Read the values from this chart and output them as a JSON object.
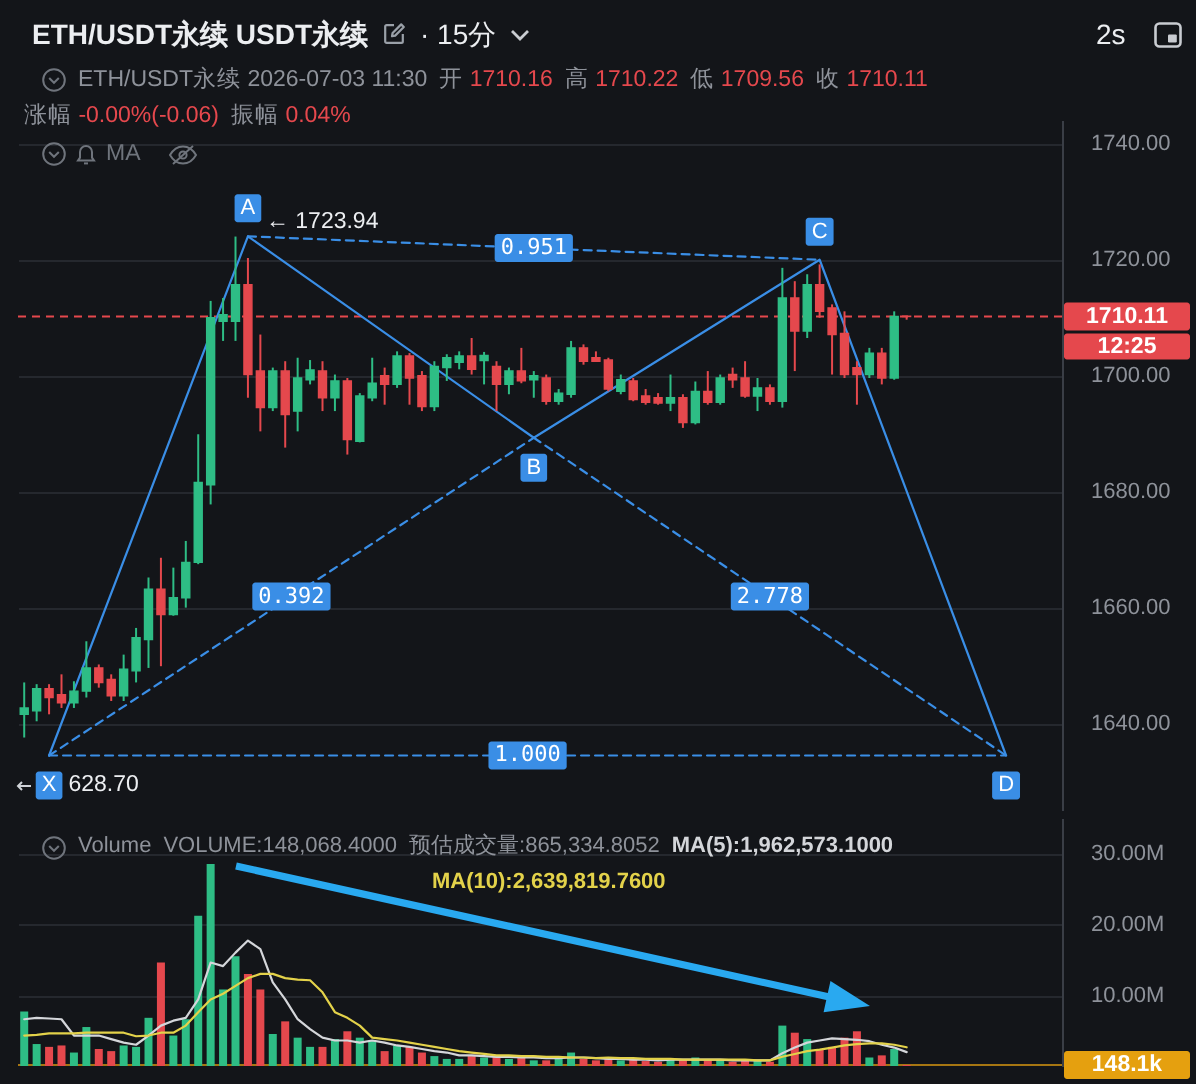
{
  "chart_data": [
    {
      "type": "candlestick",
      "title": "ETH/USDT永续 USDT永续",
      "subtitle": "ETH/USDT永续 2026-07-03 11:30",
      "categories": [
        null,
        null,
        null,
        null,
        null,
        null,
        null,
        null,
        null,
        null,
        null,
        null,
        null,
        null,
        null,
        null,
        null,
        null,
        null,
        null,
        null,
        null,
        null,
        null,
        null,
        null,
        null,
        null,
        null,
        null,
        null,
        null,
        null,
        null,
        null,
        null,
        null,
        null,
        null,
        null,
        null,
        null,
        null,
        null,
        null,
        null,
        null,
        null,
        null,
        null,
        null,
        null,
        null,
        null,
        null,
        null,
        null,
        null,
        null,
        null,
        null,
        null,
        null,
        null,
        null,
        null,
        null,
        null,
        null,
        null,
        null,
        null,
        null,
        null,
        null,
        null,
        null,
        null,
        null,
        null,
        null,
        null,
        null,
        null
      ],
      "ohlc": [
        [
          1641.5,
          1647.0,
          1637.5,
          1642.6
        ],
        [
          1642.1,
          1646.7,
          1640.3,
          1645.9
        ],
        [
          1645.9,
          1646.7,
          1641.5,
          1644.4
        ],
        [
          1644.9,
          1648.4,
          1642.6,
          1643.5
        ],
        [
          1643.5,
          1647.2,
          1642.6,
          1645.5
        ],
        [
          1645.5,
          1654.1,
          1644.4,
          1649.5
        ],
        [
          1649.5,
          1650.1,
          1646.1,
          1647.0
        ],
        [
          1647.5,
          1648.4,
          1643.8,
          1644.7
        ],
        [
          1644.7,
          1651.8,
          1643.8,
          1649.3
        ],
        [
          1649.0,
          1656.4,
          1647.0,
          1654.7
        ],
        [
          1654.4,
          1665.1,
          1649.5,
          1663.1
        ],
        [
          1663.1,
          1668.5,
          1649.8,
          1658.7
        ],
        [
          1658.7,
          1666.8,
          1658.5,
          1661.6
        ],
        [
          1661.6,
          1671.4,
          1659.9,
          1667.7
        ],
        [
          1667.7,
          1689.8,
          1667.4,
          1681.5
        ],
        [
          1681.1,
          1712.8,
          1677.7,
          1709.9
        ],
        [
          1709.3,
          1713.3,
          1705.9,
          1710.4
        ],
        [
          1709.3,
          1723.9,
          1705.9,
          1715.6
        ],
        [
          1715.6,
          1720.2,
          1696.1,
          1700.1
        ],
        [
          1700.7,
          1707.0,
          1690.3,
          1694.4
        ],
        [
          1694.4,
          1701.3,
          1693.8,
          1700.7
        ],
        [
          1700.7,
          1702.4,
          1687.5,
          1693.2
        ],
        [
          1693.8,
          1703.0,
          1690.3,
          1699.5
        ],
        [
          1699.2,
          1702.6,
          1698.4,
          1700.9
        ],
        [
          1700.7,
          1702.4,
          1693.8,
          1696.1
        ],
        [
          1696.1,
          1700.1,
          1693.8,
          1699.0
        ],
        [
          1699.0,
          1699.5,
          1686.3,
          1688.9
        ],
        [
          1688.6,
          1696.9,
          1688.4,
          1696.4
        ],
        [
          1696.1,
          1703.0,
          1695.5,
          1698.6
        ],
        [
          1699.9,
          1701.3,
          1694.9,
          1698.4
        ],
        [
          1698.4,
          1704.1,
          1697.8,
          1703.3
        ],
        [
          1703.3,
          1703.8,
          1694.9,
          1699.5
        ],
        [
          1699.9,
          1700.7,
          1693.8,
          1694.6
        ],
        [
          1694.6,
          1702.4,
          1693.8,
          1701.5
        ],
        [
          1701.3,
          1703.6,
          1699.0,
          1703.0
        ],
        [
          1702.2,
          1704.1,
          1701.0,
          1703.3
        ],
        [
          1703.3,
          1706.4,
          1700.1,
          1701.0
        ],
        [
          1702.5,
          1704.0,
          1698.4,
          1703.4
        ],
        [
          1701.5,
          1702.4,
          1693.8,
          1698.4
        ],
        [
          1698.4,
          1701.3,
          1696.7,
          1700.7
        ],
        [
          1700.7,
          1704.7,
          1698.6,
          1699.0
        ],
        [
          1699.2,
          1700.7,
          1696.1,
          1699.9
        ],
        [
          1699.5,
          1700.1,
          1694.9,
          1695.5
        ],
        [
          1695.5,
          1697.6,
          1694.9,
          1696.9
        ],
        [
          1696.7,
          1705.9,
          1696.1,
          1704.7
        ],
        [
          1704.7,
          1705.3,
          1701.8,
          1702.4
        ],
        [
          1703.0,
          1704.1,
          1702.4,
          1702.4
        ],
        [
          1702.6,
          1703.0,
          1697.2,
          1697.6
        ],
        [
          1697.2,
          1700.1,
          1696.7,
          1699.2
        ],
        [
          1699.0,
          1699.5,
          1695.5,
          1695.8
        ],
        [
          1696.4,
          1697.6,
          1694.9,
          1695.3
        ],
        [
          1696.1,
          1696.9,
          1694.9,
          1695.2
        ],
        [
          1695.2,
          1700.1,
          1693.8,
          1696.1
        ],
        [
          1696.1,
          1696.7,
          1690.9,
          1691.8
        ],
        [
          1691.8,
          1698.9,
          1691.5,
          1697.2
        ],
        [
          1697.2,
          1700.7,
          1694.9,
          1695.3
        ],
        [
          1695.3,
          1700.1,
          1694.9,
          1699.5
        ],
        [
          1700.1,
          1701.3,
          1697.8,
          1699.2
        ],
        [
          1699.5,
          1702.4,
          1696.1,
          1696.4
        ],
        [
          1696.4,
          1699.5,
          1693.8,
          1697.8
        ],
        [
          1697.8,
          1698.4,
          1694.9,
          1695.5
        ],
        [
          1695.5,
          1718.5,
          1694.4,
          1713.3
        ],
        [
          1713.3,
          1716.2,
          1700.7,
          1707.6
        ],
        [
          1707.6,
          1717.4,
          1706.4,
          1715.6
        ],
        [
          1715.6,
          1719.1,
          1709.9,
          1711.0
        ],
        [
          1711.6,
          1712.2,
          1700.1,
          1707.0
        ],
        [
          1707.2,
          1711.0,
          1699.5,
          1700.1
        ],
        [
          1701.3,
          1702.4,
          1694.9,
          1700.1
        ],
        [
          1700.1,
          1704.7,
          1699.5,
          1703.8
        ],
        [
          1703.8,
          1704.7,
          1698.4,
          1699.5
        ],
        [
          1699.5,
          1711.0,
          1699.2,
          1710.1
        ],
        [
          1710.16,
          1710.22,
          1709.56,
          1710.11
        ],
        null,
        null,
        null,
        null,
        null,
        null,
        null,
        null,
        null,
        null,
        null,
        null
      ],
      "colors": [
        "#2ebd85",
        "#2ebd85",
        "#e5484d",
        "#e5484d",
        "#2ebd85",
        "#2ebd85",
        "#e5484d",
        "#e5484d",
        "#2ebd85",
        "#2ebd85",
        "#2ebd85",
        "#e5484d",
        "#2ebd85",
        "#2ebd85",
        "#2ebd85",
        "#2ebd85",
        "#2ebd85",
        "#2ebd85",
        "#e5484d",
        "#e5484d",
        "#2ebd85",
        "#e5484d",
        "#2ebd85",
        "#2ebd85",
        "#e5484d",
        "#2ebd85",
        "#e5484d",
        "#2ebd85",
        "#2ebd85",
        "#e5484d",
        "#2ebd85",
        "#e5484d",
        "#e5484d",
        "#2ebd85",
        "#2ebd85",
        "#2ebd85",
        "#e5484d",
        "#2ebd85",
        "#e5484d",
        "#2ebd85",
        "#e5484d",
        "#2ebd85",
        "#e5484d",
        "#2ebd85",
        "#2ebd85",
        "#e5484d",
        "#e5484d",
        "#e5484d",
        "#2ebd85",
        "#e5484d",
        "#e5484d",
        "#e5484d",
        "#2ebd85",
        "#e5484d",
        "#2ebd85",
        "#e5484d",
        "#2ebd85",
        "#e5484d",
        "#e5484d",
        "#2ebd85",
        "#e5484d",
        "#2ebd85",
        "#e5484d",
        "#2ebd85",
        "#e5484d",
        "#e5484d",
        "#e5484d",
        "#e5484d",
        "#2ebd85",
        "#e5484d",
        "#2ebd85",
        "#e5484d",
        null,
        null,
        null,
        null,
        null,
        null,
        null,
        null,
        null,
        null,
        null,
        null
      ],
      "series": [
        {
          "type": "line",
          "color": "#3a8ee6",
          "values": [
            null,
            null,
            1634.4,
            null,
            null,
            null,
            null,
            null,
            null,
            null,
            null,
            null,
            null,
            null,
            null,
            null,
            null,
            null,
            1723.94,
            null,
            null,
            null,
            null,
            null,
            null,
            null,
            null,
            null,
            null,
            null,
            null,
            null,
            null,
            null,
            null,
            null,
            null,
            null,
            null,
            null,
            null,
            1689.2,
            null,
            null,
            null,
            null,
            null,
            null,
            null,
            null,
            null,
            null,
            null,
            null,
            null,
            null,
            null,
            null,
            null,
            null,
            null,
            null,
            null,
            null,
            1719.9,
            null,
            null,
            null,
            null,
            null,
            null,
            null,
            null,
            null,
            null,
            null,
            null,
            null,
            null,
            1634.4,
            null,
            null,
            null,
            null
          ],
          "value_labels": [
            null,
            null,
            "X",
            null,
            null,
            null,
            null,
            null,
            null,
            null,
            null,
            null,
            null,
            null,
            null,
            null,
            null,
            null,
            "A",
            null,
            null,
            null,
            null,
            null,
            null,
            null,
            null,
            null,
            null,
            null,
            null,
            null,
            null,
            null,
            null,
            null,
            null,
            null,
            null,
            null,
            null,
            "B",
            null,
            null,
            null,
            null,
            null,
            null,
            null,
            null,
            null,
            null,
            null,
            null,
            null,
            null,
            null,
            null,
            null,
            null,
            null,
            null,
            null,
            null,
            "C",
            null,
            null,
            null,
            null,
            null,
            null,
            null,
            null,
            null,
            null,
            null,
            null,
            null,
            null,
            "D",
            null,
            null,
            null,
            null
          ]
        },
        {
          "name": "0.392",
          "type": "line",
          "line_style": "dashed",
          "color": "#3a8ee6",
          "values": [
            null,
            null,
            1634.4,
            null,
            null,
            null,
            null,
            null,
            null,
            null,
            null,
            null,
            null,
            null,
            null,
            null,
            null,
            null,
            null,
            null,
            null,
            null,
            null,
            null,
            null,
            null,
            null,
            null,
            null,
            null,
            null,
            null,
            null,
            null,
            null,
            null,
            null,
            null,
            null,
            null,
            null,
            1689.2,
            null,
            null,
            null,
            null,
            null,
            null,
            null,
            null,
            null,
            null,
            null,
            null,
            null,
            null,
            null,
            null,
            null,
            null,
            null,
            null,
            null,
            null,
            null,
            null,
            null,
            null,
            null,
            null,
            null,
            null,
            null,
            null,
            null,
            null,
            null,
            null,
            null,
            null,
            null,
            null,
            null,
            null
          ]
        },
        {
          "name": "0.951",
          "type": "line",
          "line_style": "dashed",
          "color": "#3a8ee6",
          "values": [
            null,
            null,
            null,
            null,
            null,
            null,
            null,
            null,
            null,
            null,
            null,
            null,
            null,
            null,
            null,
            null,
            null,
            null,
            1723.94,
            null,
            null,
            null,
            null,
            null,
            null,
            null,
            null,
            null,
            null,
            null,
            null,
            null,
            null,
            null,
            null,
            null,
            null,
            null,
            null,
            null,
            null,
            null,
            null,
            null,
            null,
            null,
            null,
            null,
            null,
            null,
            null,
            null,
            null,
            null,
            null,
            null,
            null,
            null,
            null,
            null,
            null,
            null,
            null,
            null,
            1719.9,
            null,
            null,
            null,
            null,
            null,
            null,
            null,
            null,
            null,
            null,
            null,
            null,
            null,
            null,
            null,
            null,
            null,
            null,
            null
          ]
        },
        {
          "name": "2.778",
          "type": "line",
          "line_style": "dashed",
          "color": "#3a8ee6",
          "values": [
            null,
            null,
            null,
            null,
            null,
            null,
            null,
            null,
            null,
            null,
            null,
            null,
            null,
            null,
            null,
            null,
            null,
            null,
            null,
            null,
            null,
            null,
            null,
            null,
            null,
            null,
            null,
            null,
            null,
            null,
            null,
            null,
            null,
            null,
            null,
            null,
            null,
            null,
            null,
            null,
            null,
            1689.2,
            null,
            null,
            null,
            null,
            null,
            null,
            null,
            null,
            null,
            null,
            null,
            null,
            null,
            null,
            null,
            null,
            null,
            null,
            null,
            null,
            null,
            null,
            null,
            null,
            null,
            null,
            null,
            null,
            null,
            null,
            null,
            null,
            null,
            null,
            null,
            null,
            null,
            1634.4,
            null,
            null,
            null,
            null
          ]
        },
        {
          "name": "1.000",
          "type": "line",
          "line_style": "dashed",
          "color": "#3a8ee6",
          "values": [
            null,
            null,
            1634.4,
            null,
            null,
            null,
            null,
            null,
            null,
            null,
            null,
            null,
            null,
            null,
            null,
            null,
            null,
            null,
            null,
            null,
            null,
            null,
            null,
            null,
            null,
            null,
            null,
            null,
            null,
            null,
            null,
            null,
            null,
            null,
            null,
            null,
            null,
            null,
            null,
            null,
            null,
            null,
            null,
            null,
            null,
            null,
            null,
            null,
            null,
            null,
            null,
            null,
            null,
            null,
            null,
            null,
            null,
            null,
            null,
            null,
            null,
            null,
            null,
            null,
            null,
            null,
            null,
            null,
            null,
            null,
            null,
            null,
            null,
            null,
            null,
            null,
            null,
            null,
            null,
            1634.4,
            null,
            null,
            null,
            null
          ]
        }
      ],
      "ylim": [
        1625,
        1744
      ],
      "yticks": [
        {
          "value": 1640,
          "label": "1640.00"
        },
        {
          "value": 1660,
          "label": "1660.00"
        },
        {
          "value": 1680,
          "label": "1680.00"
        },
        {
          "value": 1700,
          "label": "1700.00"
        },
        {
          "value": 1720,
          "label": "1720.00"
        },
        {
          "value": 1740,
          "label": "1740.00"
        }
      ],
      "tick_labels": "y",
      "grid": "y",
      "ref_lines": [
        {
          "axis": "y",
          "value": 1710.11,
          "label": "1710.11",
          "color": "#e5484d",
          "line_style": "dashed"
        }
      ],
      "annotations": [
        "· 15分",
        "2s",
        "开 1710.16",
        "高 1710.22",
        "低 1709.56",
        "收 1710.11",
        "涨幅 -0.00%(-0.06)",
        "振幅 0.04%",
        "MA",
        "12:25",
        "← 1723.94",
        "628.70"
      ]
    },
    {
      "type": "bar",
      "title": "Volume",
      "categories": [
        null,
        null,
        null,
        null,
        null,
        null,
        null,
        null,
        null,
        null,
        null,
        null,
        null,
        null,
        null,
        null,
        null,
        null,
        null,
        null,
        null,
        null,
        null,
        null,
        null,
        null,
        null,
        null,
        null,
        null,
        null,
        null,
        null,
        null,
        null,
        null,
        null,
        null,
        null,
        null,
        null,
        null,
        null,
        null,
        null,
        null,
        null,
        null,
        null,
        null,
        null,
        null,
        null,
        null,
        null,
        null,
        null,
        null,
        null,
        null,
        null,
        null,
        null,
        null,
        null,
        null,
        null,
        null,
        null,
        null,
        null,
        null,
        null,
        null,
        null,
        null,
        null,
        null,
        null,
        null,
        null,
        null,
        null,
        null
      ],
      "series": [
        {
          "type": "bar",
          "values": [
            7700000,
            3100000,
            2700000,
            2900000,
            1900000,
            5500000,
            2400000,
            2100000,
            2900000,
            2700000,
            6800000,
            14600000,
            4300000,
            6600000,
            21200000,
            28500000,
            10800000,
            15500000,
            13000000,
            10800000,
            4500000,
            6300000,
            4000000,
            2700000,
            2700000,
            3800000,
            4900000,
            4000000,
            3600000,
            2100000,
            2900000,
            2700000,
            1900000,
            1400000,
            1000000,
            1000000,
            1400000,
            1200000,
            1400000,
            1000000,
            1400000,
            800000,
            800000,
            1000000,
            1900000,
            1000000,
            800000,
            1000000,
            800000,
            900000,
            700000,
            600000,
            1000000,
            900000,
            1200000,
            800000,
            900000,
            600000,
            800000,
            700000,
            600000,
            5700000,
            4700000,
            3800000,
            2400000,
            2700000,
            4000000,
            4900000,
            1200000,
            1500000,
            2400000,
            148068.4,
            null,
            null,
            null,
            null,
            null,
            null,
            null,
            null,
            null,
            null,
            null,
            null
          ],
          "colors": [
            "#2ebd85",
            "#2ebd85",
            "#e5484d",
            "#e5484d",
            "#2ebd85",
            "#2ebd85",
            "#e5484d",
            "#e5484d",
            "#2ebd85",
            "#2ebd85",
            "#2ebd85",
            "#e5484d",
            "#2ebd85",
            "#2ebd85",
            "#2ebd85",
            "#2ebd85",
            "#2ebd85",
            "#2ebd85",
            "#e5484d",
            "#e5484d",
            "#2ebd85",
            "#e5484d",
            "#2ebd85",
            "#2ebd85",
            "#e5484d",
            "#2ebd85",
            "#e5484d",
            "#2ebd85",
            "#2ebd85",
            "#e5484d",
            "#2ebd85",
            "#e5484d",
            "#e5484d",
            "#2ebd85",
            "#2ebd85",
            "#2ebd85",
            "#e5484d",
            "#2ebd85",
            "#e5484d",
            "#2ebd85",
            "#e5484d",
            "#2ebd85",
            "#e5484d",
            "#2ebd85",
            "#2ebd85",
            "#e5484d",
            "#e5484d",
            "#e5484d",
            "#2ebd85",
            "#e5484d",
            "#e5484d",
            "#e5484d",
            "#2ebd85",
            "#e5484d",
            "#2ebd85",
            "#e5484d",
            "#2ebd85",
            "#e5484d",
            "#e5484d",
            "#2ebd85",
            "#e5484d",
            "#2ebd85",
            "#e5484d",
            "#2ebd85",
            "#e5484d",
            "#e5484d",
            "#e5484d",
            "#e5484d",
            "#2ebd85",
            "#e5484d",
            "#2ebd85",
            "#e5484d",
            null,
            null,
            null,
            null,
            null,
            null,
            null,
            null,
            null,
            null,
            null,
            null
          ]
        },
        {
          "name": "MA(5):1,962,573.1000",
          "type": "line",
          "color": "#d4d6da",
          "values": [
            6600000,
            6800000,
            6700000,
            6600000,
            4300000,
            4300000,
            4300000,
            3800000,
            3300000,
            3000000,
            4300000,
            5700000,
            6400000,
            6800000,
            9400000,
            14600000,
            14100000,
            16000000,
            17700000,
            16500000,
            11800000,
            9400000,
            6600000,
            5200000,
            4000000,
            3600000,
            3600000,
            3300000,
            3600000,
            3300000,
            2900000,
            2700000,
            2400000,
            2100000,
            1900000,
            1500000,
            1500000,
            1400000,
            1300000,
            1300000,
            1200000,
            1200000,
            1100000,
            1100000,
            1200000,
            1200000,
            1100000,
            1000000,
            1000000,
            900000,
            900000,
            800000,
            900000,
            900000,
            900000,
            900000,
            900000,
            800000,
            800000,
            800000,
            800000,
            1800000,
            2600000,
            3300000,
            3600000,
            3900000,
            3800000,
            3700000,
            3500000,
            3000000,
            2600000,
            1962573.1,
            null,
            null,
            null,
            null,
            null,
            null,
            null,
            null,
            null,
            null,
            null,
            null
          ]
        },
        {
          "name": "MA(10):2,639,819.7600",
          "type": "line",
          "color": "#e3d24a",
          "values": [
            4300000,
            4400000,
            4600000,
            4600000,
            4600000,
            4700000,
            4700000,
            4700000,
            4700000,
            4200000,
            4300000,
            4700000,
            4700000,
            5700000,
            7600000,
            9400000,
            10200000,
            11300000,
            12400000,
            13000000,
            13000000,
            12400000,
            12200000,
            12100000,
            10400000,
            7600000,
            6800000,
            5700000,
            4000000,
            3800000,
            3600000,
            3300000,
            3000000,
            2700000,
            2400000,
            2100000,
            1900000,
            1700000,
            1500000,
            1500000,
            1400000,
            1400000,
            1300000,
            1300000,
            1200000,
            1200000,
            1100000,
            1200000,
            1100000,
            1100000,
            1000000,
            1000000,
            1000000,
            900000,
            900000,
            900000,
            900000,
            900000,
            900000,
            800000,
            800000,
            1300000,
            1700000,
            2100000,
            2300000,
            2600000,
            2900000,
            3100000,
            3200000,
            3200000,
            3000000,
            2639819.76,
            null,
            null,
            null,
            null,
            null,
            null,
            null,
            null,
            null,
            null,
            null,
            null
          ]
        }
      ],
      "ylim": [
        0,
        35000000
      ],
      "yticks": [
        {
          "value": 10000000,
          "label": "10.00M"
        },
        {
          "value": 20000000,
          "label": "20.00M"
        },
        {
          "value": 30000000,
          "label": "30.00M"
        }
      ],
      "tick_labels": "y",
      "grid": "y",
      "ref_lines": [
        {
          "axis": "y",
          "value": 148068.4,
          "label": "148.1k",
          "color": "#e5a00f"
        }
      ],
      "annotations": [
        "VOLUME:148,068.4000",
        "预估成交量:865,334.8052"
      ]
    }
  ]
}
